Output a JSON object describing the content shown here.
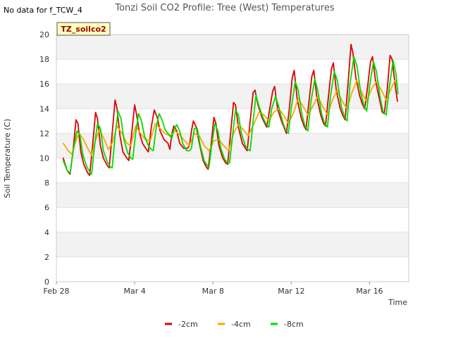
{
  "chart_data": {
    "type": "line",
    "title": "Tonzi Soil CO2 Profile: Tree (West) Temperatures",
    "no_data_note": "No data for f_TCW_4",
    "badge": "TZ_soilco2",
    "xlabel": "Time",
    "ylabel": "Soil Temperature (C)",
    "xlim": [
      0,
      18
    ],
    "ylim": [
      0,
      20
    ],
    "y_ticks": [
      0,
      2,
      4,
      6,
      8,
      10,
      12,
      14,
      16,
      18,
      20
    ],
    "x_ticks": [
      {
        "day": 0,
        "label": "Feb 28"
      },
      {
        "day": 4,
        "label": "Mar 4"
      },
      {
        "day": 8,
        "label": "Mar 8"
      },
      {
        "day": 12,
        "label": "Mar 12"
      },
      {
        "day": 16,
        "label": "Mar 16"
      }
    ],
    "series": [
      {
        "name": "-2cm",
        "color": "#dd0000",
        "points": [
          [
            0.35,
            10.0
          ],
          [
            0.55,
            9.0
          ],
          [
            0.7,
            8.7
          ],
          [
            0.85,
            10.5
          ],
          [
            1.0,
            13.1
          ],
          [
            1.1,
            12.8
          ],
          [
            1.25,
            10.5
          ],
          [
            1.4,
            9.5
          ],
          [
            1.6,
            8.8
          ],
          [
            1.7,
            8.6
          ],
          [
            1.85,
            11.0
          ],
          [
            2.0,
            13.7
          ],
          [
            2.1,
            13.2
          ],
          [
            2.25,
            11.0
          ],
          [
            2.4,
            10.0
          ],
          [
            2.6,
            9.4
          ],
          [
            2.7,
            9.2
          ],
          [
            2.85,
            12.0
          ],
          [
            3.0,
            14.7
          ],
          [
            3.1,
            14.0
          ],
          [
            3.25,
            11.8
          ],
          [
            3.4,
            10.5
          ],
          [
            3.6,
            10.0
          ],
          [
            3.7,
            9.8
          ],
          [
            3.85,
            12.0
          ],
          [
            4.0,
            14.3
          ],
          [
            4.1,
            13.5
          ],
          [
            4.25,
            12.0
          ],
          [
            4.4,
            11.2
          ],
          [
            4.6,
            10.7
          ],
          [
            4.7,
            10.5
          ],
          [
            4.85,
            12.5
          ],
          [
            5.0,
            13.9
          ],
          [
            5.15,
            13.3
          ],
          [
            5.3,
            12.2
          ],
          [
            5.5,
            11.5
          ],
          [
            5.7,
            11.2
          ],
          [
            5.8,
            10.7
          ],
          [
            5.9,
            12.0
          ],
          [
            6.0,
            12.6
          ],
          [
            6.15,
            12.2
          ],
          [
            6.3,
            11.2
          ],
          [
            6.5,
            10.8
          ],
          [
            6.7,
            10.8
          ],
          [
            6.8,
            11.0
          ],
          [
            6.9,
            12.2
          ],
          [
            7.0,
            13.0
          ],
          [
            7.15,
            12.5
          ],
          [
            7.3,
            11.2
          ],
          [
            7.5,
            9.8
          ],
          [
            7.65,
            9.3
          ],
          [
            7.75,
            9.1
          ],
          [
            7.9,
            11.0
          ],
          [
            8.05,
            13.3
          ],
          [
            8.15,
            12.8
          ],
          [
            8.3,
            11.0
          ],
          [
            8.5,
            10.0
          ],
          [
            8.65,
            9.6
          ],
          [
            8.75,
            9.5
          ],
          [
            8.9,
            12.0
          ],
          [
            9.05,
            14.5
          ],
          [
            9.15,
            14.3
          ],
          [
            9.3,
            12.5
          ],
          [
            9.5,
            11.2
          ],
          [
            9.65,
            10.8
          ],
          [
            9.75,
            10.6
          ],
          [
            9.9,
            13.0
          ],
          [
            10.05,
            15.3
          ],
          [
            10.15,
            15.5
          ],
          [
            10.3,
            14.3
          ],
          [
            10.5,
            13.3
          ],
          [
            10.65,
            12.8
          ],
          [
            10.75,
            12.5
          ],
          [
            10.9,
            14.0
          ],
          [
            11.05,
            15.4
          ],
          [
            11.15,
            15.8
          ],
          [
            11.3,
            14.0
          ],
          [
            11.5,
            13.0
          ],
          [
            11.65,
            12.4
          ],
          [
            11.75,
            12.0
          ],
          [
            11.9,
            14.0
          ],
          [
            12.05,
            16.5
          ],
          [
            12.15,
            17.1
          ],
          [
            12.3,
            14.8
          ],
          [
            12.5,
            13.3
          ],
          [
            12.65,
            12.6
          ],
          [
            12.75,
            12.3
          ],
          [
            12.9,
            14.5
          ],
          [
            13.05,
            16.6
          ],
          [
            13.15,
            17.1
          ],
          [
            13.3,
            15.0
          ],
          [
            13.5,
            13.5
          ],
          [
            13.65,
            12.8
          ],
          [
            13.75,
            12.6
          ],
          [
            13.9,
            15.0
          ],
          [
            14.05,
            17.2
          ],
          [
            14.15,
            17.7
          ],
          [
            14.3,
            15.5
          ],
          [
            14.5,
            14.0
          ],
          [
            14.65,
            13.4
          ],
          [
            14.75,
            13.1
          ],
          [
            14.9,
            16.0
          ],
          [
            15.05,
            19.2
          ],
          [
            15.15,
            18.5
          ],
          [
            15.3,
            16.5
          ],
          [
            15.5,
            15.0
          ],
          [
            15.65,
            14.3
          ],
          [
            15.75,
            14.0
          ],
          [
            15.9,
            15.8
          ],
          [
            16.05,
            17.8
          ],
          [
            16.15,
            18.2
          ],
          [
            16.3,
            16.3
          ],
          [
            16.5,
            14.8
          ],
          [
            16.65,
            13.7
          ],
          [
            16.75,
            13.6
          ],
          [
            16.9,
            15.5
          ],
          [
            17.05,
            18.3
          ],
          [
            17.15,
            18.0
          ],
          [
            17.3,
            16.0
          ],
          [
            17.42,
            14.6
          ]
        ]
      },
      {
        "name": "-4cm",
        "color": "#ffa500",
        "points": [
          [
            0.35,
            11.2
          ],
          [
            0.6,
            10.6
          ],
          [
            0.8,
            10.3
          ],
          [
            0.95,
            11.2
          ],
          [
            1.15,
            12.0
          ],
          [
            1.35,
            11.6
          ],
          [
            1.6,
            10.8
          ],
          [
            1.8,
            10.2
          ],
          [
            1.95,
            11.2
          ],
          [
            2.2,
            12.3
          ],
          [
            2.45,
            11.5
          ],
          [
            2.65,
            10.7
          ],
          [
            2.85,
            11.2
          ],
          [
            3.1,
            12.6
          ],
          [
            3.35,
            12.0
          ],
          [
            3.6,
            11.2
          ],
          [
            3.8,
            11.0
          ],
          [
            4.05,
            12.6
          ],
          [
            4.3,
            12.0
          ],
          [
            4.55,
            11.5
          ],
          [
            4.8,
            11.4
          ],
          [
            5.05,
            12.8
          ],
          [
            5.3,
            12.4
          ],
          [
            5.55,
            12.0
          ],
          [
            5.8,
            11.8
          ],
          [
            6.05,
            12.2
          ],
          [
            6.3,
            11.9
          ],
          [
            6.55,
            11.4
          ],
          [
            6.8,
            11.0
          ],
          [
            7.05,
            12.0
          ],
          [
            7.3,
            11.8
          ],
          [
            7.55,
            11.0
          ],
          [
            7.8,
            10.6
          ],
          [
            8.05,
            11.4
          ],
          [
            8.3,
            11.5
          ],
          [
            8.55,
            11.0
          ],
          [
            8.8,
            10.6
          ],
          [
            9.05,
            12.0
          ],
          [
            9.3,
            12.7
          ],
          [
            9.55,
            12.3
          ],
          [
            9.8,
            11.8
          ],
          [
            10.1,
            12.8
          ],
          [
            10.35,
            13.7
          ],
          [
            10.6,
            13.5
          ],
          [
            10.85,
            13.0
          ],
          [
            11.1,
            13.7
          ],
          [
            11.35,
            14.0
          ],
          [
            11.6,
            13.5
          ],
          [
            11.85,
            12.8
          ],
          [
            12.1,
            13.6
          ],
          [
            12.35,
            14.8
          ],
          [
            12.6,
            14.2
          ],
          [
            12.85,
            13.5
          ],
          [
            13.1,
            14.2
          ],
          [
            13.35,
            15.0
          ],
          [
            13.6,
            14.2
          ],
          [
            13.85,
            13.5
          ],
          [
            14.1,
            14.7
          ],
          [
            14.35,
            15.5
          ],
          [
            14.6,
            14.6
          ],
          [
            14.85,
            14.0
          ],
          [
            15.1,
            15.3
          ],
          [
            15.35,
            16.3
          ],
          [
            15.6,
            15.3
          ],
          [
            15.85,
            14.6
          ],
          [
            16.1,
            15.6
          ],
          [
            16.35,
            16.2
          ],
          [
            16.6,
            15.5
          ],
          [
            16.85,
            14.7
          ],
          [
            17.1,
            15.6
          ],
          [
            17.3,
            16.3
          ],
          [
            17.42,
            15.7
          ]
        ]
      },
      {
        "name": "-8cm",
        "color": "#00dd00",
        "points": [
          [
            0.35,
            9.8
          ],
          [
            0.55,
            9.0
          ],
          [
            0.7,
            8.8
          ],
          [
            0.85,
            10.5
          ],
          [
            1.05,
            12.2
          ],
          [
            1.2,
            11.9
          ],
          [
            1.35,
            10.3
          ],
          [
            1.55,
            9.3
          ],
          [
            1.7,
            8.9
          ],
          [
            1.8,
            8.7
          ],
          [
            1.95,
            11.0
          ],
          [
            2.1,
            12.8
          ],
          [
            2.25,
            12.4
          ],
          [
            2.4,
            10.6
          ],
          [
            2.6,
            9.7
          ],
          [
            2.75,
            9.3
          ],
          [
            2.85,
            9.2
          ],
          [
            3.0,
            11.8
          ],
          [
            3.15,
            13.8
          ],
          [
            3.3,
            13.2
          ],
          [
            3.45,
            11.5
          ],
          [
            3.65,
            10.4
          ],
          [
            3.8,
            10.0
          ],
          [
            3.9,
            9.9
          ],
          [
            4.05,
            12.0
          ],
          [
            4.2,
            13.6
          ],
          [
            4.35,
            13.0
          ],
          [
            4.5,
            11.8
          ],
          [
            4.7,
            11.0
          ],
          [
            4.85,
            10.7
          ],
          [
            4.95,
            10.6
          ],
          [
            5.1,
            12.5
          ],
          [
            5.25,
            13.6
          ],
          [
            5.4,
            13.1
          ],
          [
            5.55,
            12.3
          ],
          [
            5.75,
            11.9
          ],
          [
            5.9,
            11.6
          ],
          [
            6.0,
            12.3
          ],
          [
            6.15,
            12.7
          ],
          [
            6.3,
            12.2
          ],
          [
            6.45,
            11.2
          ],
          [
            6.65,
            10.6
          ],
          [
            6.8,
            10.6
          ],
          [
            6.9,
            10.8
          ],
          [
            7.05,
            12.4
          ],
          [
            7.2,
            12.4
          ],
          [
            7.35,
            11.0
          ],
          [
            7.55,
            9.8
          ],
          [
            7.7,
            9.4
          ],
          [
            7.8,
            9.3
          ],
          [
            7.95,
            11.2
          ],
          [
            8.1,
            12.8
          ],
          [
            8.25,
            12.2
          ],
          [
            8.4,
            10.8
          ],
          [
            8.6,
            9.9
          ],
          [
            8.75,
            9.6
          ],
          [
            8.85,
            9.6
          ],
          [
            9.0,
            11.8
          ],
          [
            9.15,
            13.9
          ],
          [
            9.3,
            13.5
          ],
          [
            9.45,
            12.0
          ],
          [
            9.65,
            11.0
          ],
          [
            9.8,
            10.7
          ],
          [
            9.9,
            10.6
          ],
          [
            10.05,
            13.0
          ],
          [
            10.2,
            15.1
          ],
          [
            10.35,
            14.2
          ],
          [
            10.55,
            13.3
          ],
          [
            10.7,
            12.8
          ],
          [
            10.85,
            12.5
          ],
          [
            11.0,
            14.0
          ],
          [
            11.2,
            15.0
          ],
          [
            11.35,
            14.2
          ],
          [
            11.55,
            13.0
          ],
          [
            11.7,
            12.3
          ],
          [
            11.85,
            12.0
          ],
          [
            12.0,
            14.0
          ],
          [
            12.2,
            16.2
          ],
          [
            12.35,
            15.5
          ],
          [
            12.55,
            13.5
          ],
          [
            12.7,
            12.6
          ],
          [
            12.85,
            12.2
          ],
          [
            13.0,
            14.5
          ],
          [
            13.2,
            16.4
          ],
          [
            13.35,
            15.5
          ],
          [
            13.55,
            13.6
          ],
          [
            13.7,
            12.8
          ],
          [
            13.85,
            12.5
          ],
          [
            14.0,
            15.0
          ],
          [
            14.2,
            17.0
          ],
          [
            14.35,
            16.3
          ],
          [
            14.55,
            14.2
          ],
          [
            14.7,
            13.4
          ],
          [
            14.85,
            13.0
          ],
          [
            15.0,
            16.0
          ],
          [
            15.2,
            18.2
          ],
          [
            15.35,
            17.5
          ],
          [
            15.55,
            15.3
          ],
          [
            15.7,
            14.3
          ],
          [
            15.85,
            13.8
          ],
          [
            16.0,
            15.8
          ],
          [
            16.2,
            17.8
          ],
          [
            16.35,
            17.0
          ],
          [
            16.55,
            14.8
          ],
          [
            16.7,
            13.7
          ],
          [
            16.85,
            13.5
          ],
          [
            17.0,
            15.6
          ],
          [
            17.2,
            17.9
          ],
          [
            17.35,
            16.8
          ],
          [
            17.45,
            15.2
          ]
        ]
      }
    ]
  }
}
